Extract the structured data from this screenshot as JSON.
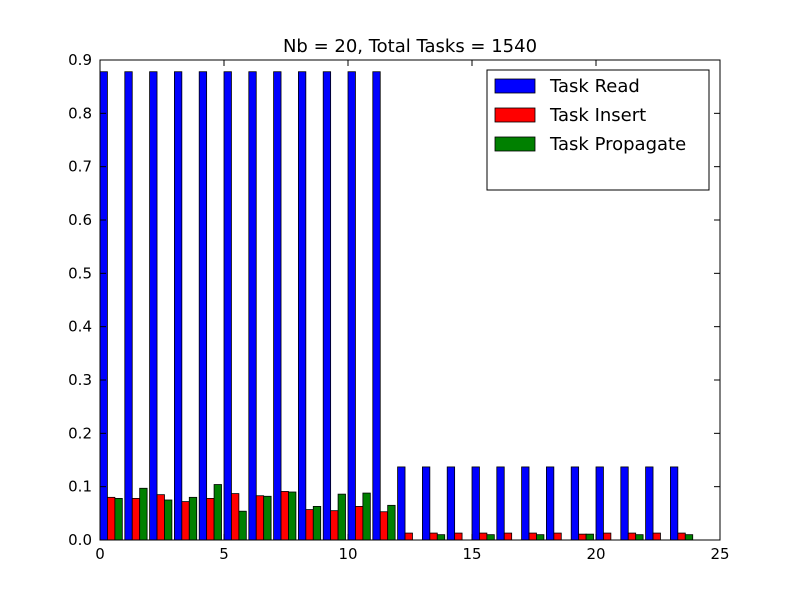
{
  "chart_data": {
    "type": "bar",
    "title": "Nb = 20, Total Tasks = 1540",
    "xlabel": "",
    "ylabel": "",
    "xlim": [
      0,
      25
    ],
    "ylim": [
      0,
      0.9
    ],
    "xticks": [
      "0",
      "5",
      "10",
      "15",
      "20",
      "25"
    ],
    "yticks": [
      "0.0",
      "0.1",
      "0.2",
      "0.3",
      "0.4",
      "0.5",
      "0.6",
      "0.7",
      "0.8",
      "0.9"
    ],
    "xtick_values": [
      0,
      5,
      10,
      15,
      20,
      25
    ],
    "ytick_values": [
      0,
      0.1,
      0.2,
      0.3,
      0.4,
      0.5,
      0.6,
      0.7,
      0.8,
      0.9
    ],
    "x": [
      0,
      1,
      2,
      3,
      4,
      5,
      6,
      7,
      8,
      9,
      10,
      11,
      12,
      13,
      14,
      15,
      16,
      17,
      18,
      19,
      20,
      21,
      22,
      23
    ],
    "bar_width": 0.3,
    "grid": false,
    "legend_position": "top-right",
    "series": [
      {
        "name": "Task Read",
        "color": "#0000ff",
        "values": [
          0.878,
          0.878,
          0.878,
          0.878,
          0.878,
          0.878,
          0.878,
          0.878,
          0.878,
          0.878,
          0.878,
          0.878,
          0.137,
          0.137,
          0.137,
          0.137,
          0.137,
          0.137,
          0.137,
          0.137,
          0.137,
          0.137,
          0.137,
          0.137
        ]
      },
      {
        "name": "Task Insert",
        "color": "#ff0000",
        "values": [
          0.08,
          0.078,
          0.085,
          0.072,
          0.078,
          0.087,
          0.083,
          0.091,
          0.057,
          0.055,
          0.063,
          0.053,
          0.013,
          0.013,
          0.013,
          0.013,
          0.013,
          0.013,
          0.013,
          0.011,
          0.013,
          0.013,
          0.013,
          0.013
        ]
      },
      {
        "name": "Task Propagate",
        "color": "#008000",
        "values": [
          0.078,
          0.097,
          0.075,
          0.08,
          0.104,
          0.054,
          0.082,
          0.09,
          0.063,
          0.086,
          0.088,
          0.065,
          0.0,
          0.01,
          0.0,
          0.01,
          0.0,
          0.01,
          0.0,
          0.011,
          0.0,
          0.01,
          0.0,
          0.01
        ]
      }
    ]
  }
}
